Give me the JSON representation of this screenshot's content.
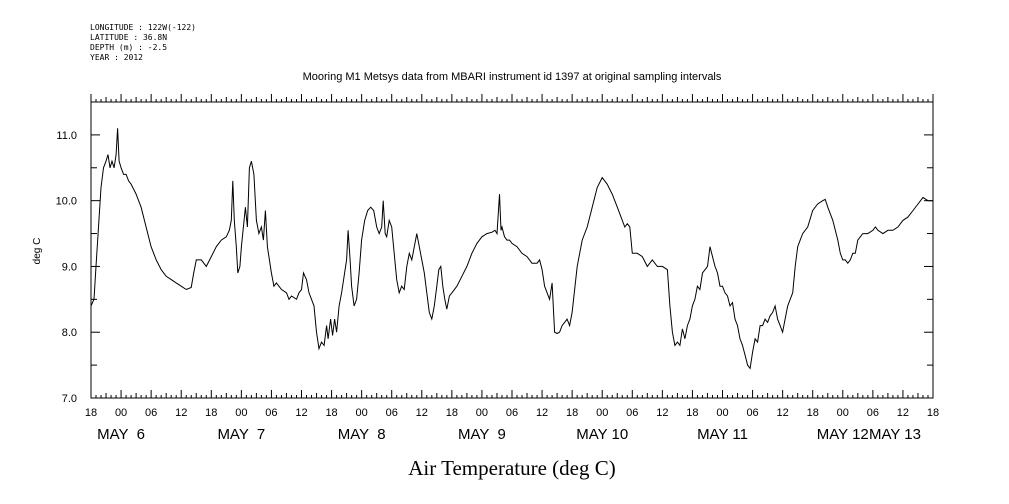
{
  "header": {
    "longitude": "LONGITUDE : 122W(-122)",
    "latitude": "LATITUDE : 36.8N",
    "depth": "DEPTH (m) : -2.5",
    "year": "YEAR : 2012"
  },
  "chart_data": {
    "type": "line",
    "title": "Mooring M1 Metsys data from MBARI instrument id 1397 at original sampling intervals",
    "xlabel": "Air Temperature (deg C)",
    "ylabel": "deg C",
    "ylim": [
      7.0,
      11.5
    ],
    "yticks": [
      "7.0",
      "8.0",
      "9.0",
      "10.0",
      "11.0"
    ],
    "x_unit": "hours since May 5 18:00",
    "xlim": [
      0,
      168
    ],
    "xtick_hour_labels": [
      "18",
      "00",
      "06",
      "12",
      "18",
      "00",
      "06",
      "12",
      "18",
      "00",
      "06",
      "12",
      "18",
      "00",
      "06",
      "12",
      "18",
      "00",
      "06",
      "12",
      "18",
      "00",
      "06",
      "12",
      "18",
      "00",
      "06",
      "12",
      "18",
      "00",
      "06",
      "12",
      "18"
    ],
    "day_labels": [
      {
        "text": "MAY  6",
        "x": 6
      },
      {
        "text": "MAY  7",
        "x": 30
      },
      {
        "text": "MAY  8",
        "x": 54
      },
      {
        "text": "MAY  9",
        "x": 78
      },
      {
        "text": "MAY 10",
        "x": 102
      },
      {
        "text": "MAY 11",
        "x": 126
      },
      {
        "text": "MAY 12",
        "x": 150
      },
      {
        "text": "MAY 13",
        "x": 174
      }
    ],
    "grid": false,
    "series": [
      {
        "points": [
          [
            0,
            8.4
          ],
          [
            0.6,
            8.5
          ],
          [
            1,
            9.0
          ],
          [
            1.5,
            9.6
          ],
          [
            2,
            10.2
          ],
          [
            2.5,
            10.5
          ],
          [
            3,
            10.6
          ],
          [
            3.4,
            10.7
          ],
          [
            3.8,
            10.5
          ],
          [
            4.2,
            10.6
          ],
          [
            4.6,
            10.5
          ],
          [
            5,
            10.7
          ],
          [
            5.3,
            11.1
          ],
          [
            5.6,
            10.6
          ],
          [
            6,
            10.5
          ],
          [
            6.5,
            10.4
          ],
          [
            7,
            10.4
          ],
          [
            7.5,
            10.3
          ],
          [
            8,
            10.25
          ],
          [
            9,
            10.1
          ],
          [
            10,
            9.9
          ],
          [
            11,
            9.6
          ],
          [
            12,
            9.3
          ],
          [
            13,
            9.1
          ],
          [
            14,
            8.95
          ],
          [
            15,
            8.85
          ],
          [
            16,
            8.8
          ],
          [
            17,
            8.75
          ],
          [
            18,
            8.7
          ],
          [
            19,
            8.65
          ],
          [
            20,
            8.68
          ],
          [
            20.5,
            8.9
          ],
          [
            21,
            9.1
          ],
          [
            22,
            9.1
          ],
          [
            23,
            9.0
          ],
          [
            24,
            9.15
          ],
          [
            25,
            9.3
          ],
          [
            26,
            9.4
          ],
          [
            27,
            9.45
          ],
          [
            27.6,
            9.55
          ],
          [
            28,
            9.7
          ],
          [
            28.3,
            10.3
          ],
          [
            28.6,
            9.7
          ],
          [
            29,
            9.3
          ],
          [
            29.3,
            8.9
          ],
          [
            29.7,
            9.0
          ],
          [
            30,
            9.3
          ],
          [
            30.4,
            9.6
          ],
          [
            30.8,
            9.9
          ],
          [
            31.2,
            9.6
          ],
          [
            31.6,
            10.5
          ],
          [
            32,
            10.6
          ],
          [
            32.5,
            10.4
          ],
          [
            33,
            9.7
          ],
          [
            33.5,
            9.5
          ],
          [
            34,
            9.6
          ],
          [
            34.4,
            9.4
          ],
          [
            34.8,
            9.85
          ],
          [
            35.2,
            9.3
          ],
          [
            36,
            8.9
          ],
          [
            36.5,
            8.7
          ],
          [
            37,
            8.75
          ],
          [
            37.5,
            8.7
          ],
          [
            38,
            8.65
          ],
          [
            39,
            8.6
          ],
          [
            39.5,
            8.5
          ],
          [
            40,
            8.55
          ],
          [
            41,
            8.5
          ],
          [
            41.5,
            8.6
          ],
          [
            42,
            8.65
          ],
          [
            42.4,
            8.9
          ],
          [
            43,
            8.8
          ],
          [
            43.5,
            8.6
          ],
          [
            44,
            8.5
          ],
          [
            44.5,
            8.4
          ],
          [
            45,
            8.0
          ],
          [
            45.5,
            7.75
          ],
          [
            46,
            7.85
          ],
          [
            46.5,
            7.8
          ],
          [
            47,
            8.1
          ],
          [
            47.3,
            7.9
          ],
          [
            47.8,
            8.2
          ],
          [
            48.2,
            7.95
          ],
          [
            48.6,
            8.2
          ],
          [
            49,
            8.0
          ],
          [
            49.5,
            8.4
          ],
          [
            50,
            8.6
          ],
          [
            50.5,
            8.85
          ],
          [
            51,
            9.1
          ],
          [
            51.3,
            9.55
          ],
          [
            51.7,
            9.1
          ],
          [
            52,
            8.7
          ],
          [
            52.5,
            8.4
          ],
          [
            53,
            8.5
          ],
          [
            53.5,
            8.9
          ],
          [
            54,
            9.4
          ],
          [
            54.6,
            9.7
          ],
          [
            55.2,
            9.85
          ],
          [
            55.8,
            9.9
          ],
          [
            56.4,
            9.85
          ],
          [
            57,
            9.6
          ],
          [
            57.5,
            9.5
          ],
          [
            58,
            9.6
          ],
          [
            58.3,
            10.0
          ],
          [
            58.7,
            9.5
          ],
          [
            59,
            9.45
          ],
          [
            59.5,
            9.7
          ],
          [
            60,
            9.6
          ],
          [
            60.5,
            9.2
          ],
          [
            61,
            8.8
          ],
          [
            61.5,
            8.6
          ],
          [
            62,
            8.7
          ],
          [
            62.5,
            8.65
          ],
          [
            63,
            9.0
          ],
          [
            63.5,
            9.2
          ],
          [
            64,
            9.1
          ],
          [
            64.5,
            9.3
          ],
          [
            65,
            9.5
          ],
          [
            65.5,
            9.3
          ],
          [
            66,
            9.1
          ],
          [
            66.5,
            8.9
          ],
          [
            67,
            8.6
          ],
          [
            67.5,
            8.3
          ],
          [
            68,
            8.2
          ],
          [
            68.5,
            8.4
          ],
          [
            69,
            8.7
          ],
          [
            69.4,
            8.95
          ],
          [
            69.8,
            9.0
          ],
          [
            70.2,
            8.7
          ],
          [
            70.6,
            8.5
          ],
          [
            71,
            8.35
          ],
          [
            71.5,
            8.55
          ],
          [
            72,
            8.6
          ],
          [
            73,
            8.7
          ],
          [
            74,
            8.85
          ],
          [
            75,
            9.0
          ],
          [
            76,
            9.2
          ],
          [
            77,
            9.35
          ],
          [
            78,
            9.45
          ],
          [
            79,
            9.5
          ],
          [
            80,
            9.52
          ],
          [
            80.6,
            9.55
          ],
          [
            81,
            9.5
          ],
          [
            81.5,
            10.1
          ],
          [
            81.8,
            9.55
          ],
          [
            82,
            9.6
          ],
          [
            82.5,
            9.45
          ],
          [
            83,
            9.4
          ],
          [
            83.5,
            9.4
          ],
          [
            84,
            9.35
          ],
          [
            85,
            9.3
          ],
          [
            86,
            9.2
          ],
          [
            87,
            9.15
          ],
          [
            88,
            9.05
          ],
          [
            89,
            9.05
          ],
          [
            89.5,
            9.1
          ],
          [
            90,
            8.95
          ],
          [
            90.5,
            8.7
          ],
          [
            91,
            8.6
          ],
          [
            91.5,
            8.5
          ],
          [
            92,
            8.75
          ],
          [
            92.5,
            8.0
          ],
          [
            93,
            7.98
          ],
          [
            93.5,
            8.0
          ],
          [
            94,
            8.1
          ],
          [
            94.5,
            8.15
          ],
          [
            95,
            8.2
          ],
          [
            95.5,
            8.1
          ],
          [
            96,
            8.3
          ],
          [
            97,
            9.0
          ],
          [
            98,
            9.4
          ],
          [
            99,
            9.6
          ],
          [
            100,
            9.9
          ],
          [
            101,
            10.2
          ],
          [
            102,
            10.35
          ],
          [
            103,
            10.25
          ],
          [
            104,
            10.1
          ],
          [
            105,
            9.9
          ],
          [
            106,
            9.7
          ],
          [
            106.5,
            9.6
          ],
          [
            107,
            9.65
          ],
          [
            107.5,
            9.6
          ],
          [
            108,
            9.2
          ],
          [
            109,
            9.2
          ],
          [
            110,
            9.15
          ],
          [
            111,
            9.0
          ],
          [
            112,
            9.1
          ],
          [
            113,
            9.0
          ],
          [
            114,
            9.0
          ],
          [
            115,
            8.95
          ],
          [
            115.5,
            8.4
          ],
          [
            116,
            8.0
          ],
          [
            116.5,
            7.8
          ],
          [
            117,
            7.85
          ],
          [
            117.5,
            7.8
          ],
          [
            118,
            8.05
          ],
          [
            118.5,
            7.9
          ],
          [
            119,
            8.1
          ],
          [
            119.5,
            8.2
          ],
          [
            120,
            8.4
          ],
          [
            120.5,
            8.5
          ],
          [
            121,
            8.7
          ],
          [
            121.5,
            8.65
          ],
          [
            122,
            8.9
          ],
          [
            122.5,
            8.95
          ],
          [
            123,
            9.0
          ],
          [
            123.5,
            9.3
          ],
          [
            124,
            9.15
          ],
          [
            124.5,
            9.0
          ],
          [
            125,
            8.9
          ],
          [
            125.5,
            8.7
          ],
          [
            126,
            8.7
          ],
          [
            126.5,
            8.6
          ],
          [
            127,
            8.55
          ],
          [
            127.5,
            8.4
          ],
          [
            128,
            8.45
          ],
          [
            128.5,
            8.2
          ],
          [
            129,
            8.1
          ],
          [
            129.5,
            7.9
          ],
          [
            130,
            7.8
          ],
          [
            130.5,
            7.65
          ],
          [
            131,
            7.5
          ],
          [
            131.5,
            7.45
          ],
          [
            132,
            7.7
          ],
          [
            132.5,
            7.9
          ],
          [
            133,
            7.85
          ],
          [
            133.5,
            8.1
          ],
          [
            134,
            8.1
          ],
          [
            134.5,
            8.2
          ],
          [
            135,
            8.15
          ],
          [
            135.5,
            8.25
          ],
          [
            136,
            8.3
          ],
          [
            136.5,
            8.4
          ],
          [
            137,
            8.2
          ],
          [
            137.5,
            8.1
          ],
          [
            138,
            8.0
          ],
          [
            138.5,
            8.2
          ],
          [
            139,
            8.4
          ],
          [
            140,
            8.6
          ],
          [
            140.5,
            9.0
          ],
          [
            141,
            9.3
          ],
          [
            141.5,
            9.4
          ],
          [
            142,
            9.5
          ],
          [
            143,
            9.6
          ],
          [
            144,
            9.85
          ],
          [
            145,
            9.95
          ],
          [
            146,
            10.0
          ],
          [
            146.5,
            10.02
          ],
          [
            147,
            9.9
          ],
          [
            148,
            9.7
          ],
          [
            149,
            9.4
          ],
          [
            149.5,
            9.2
          ],
          [
            150,
            9.1
          ],
          [
            150.5,
            9.1
          ],
          [
            151,
            9.05
          ],
          [
            151.5,
            9.1
          ],
          [
            152,
            9.2
          ],
          [
            152.5,
            9.2
          ],
          [
            153,
            9.4
          ],
          [
            153.5,
            9.45
          ],
          [
            154,
            9.5
          ],
          [
            155,
            9.5
          ],
          [
            156,
            9.55
          ],
          [
            156.5,
            9.6
          ],
          [
            157,
            9.55
          ],
          [
            158,
            9.5
          ],
          [
            159,
            9.55
          ],
          [
            160,
            9.55
          ],
          [
            161,
            9.6
          ],
          [
            162,
            9.7
          ],
          [
            163,
            9.75
          ],
          [
            164,
            9.85
          ],
          [
            165,
            9.95
          ],
          [
            166,
            10.05
          ],
          [
            167,
            10.0
          ],
          [
            168,
            10.0
          ]
        ]
      }
    ]
  }
}
